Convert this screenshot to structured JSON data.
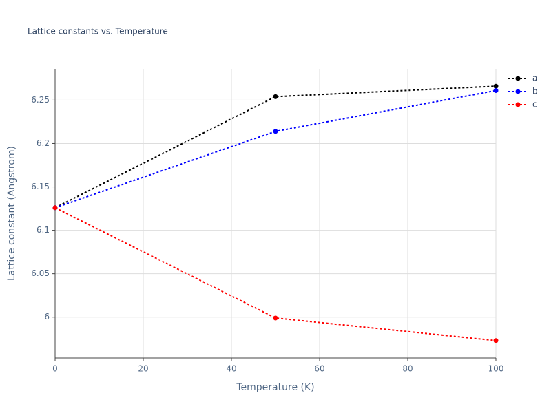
{
  "chart_data": {
    "type": "line",
    "title": "Lattice constants vs. Temperature",
    "xlabel": "Temperature (K)",
    "ylabel": "Lattice constant (Angstrom)",
    "x": [
      0,
      50,
      100
    ],
    "series": [
      {
        "name": "a",
        "color": "#000000",
        "values": [
          6.126,
          6.254,
          6.266
        ]
      },
      {
        "name": "b",
        "color": "#0000ff",
        "values": [
          6.126,
          6.214,
          6.261
        ]
      },
      {
        "name": "c",
        "color": "#ff0000",
        "values": [
          6.126,
          5.999,
          5.973
        ]
      }
    ],
    "xlim": [
      0,
      100
    ],
    "xticks": [
      0,
      20,
      40,
      60,
      80,
      100
    ],
    "ylim": [
      5.953,
      6.286
    ],
    "yticks": [
      6,
      6.05,
      6.1,
      6.15,
      6.2,
      6.25
    ],
    "grid": true,
    "line_style": "dotted",
    "legend": "top-right"
  }
}
